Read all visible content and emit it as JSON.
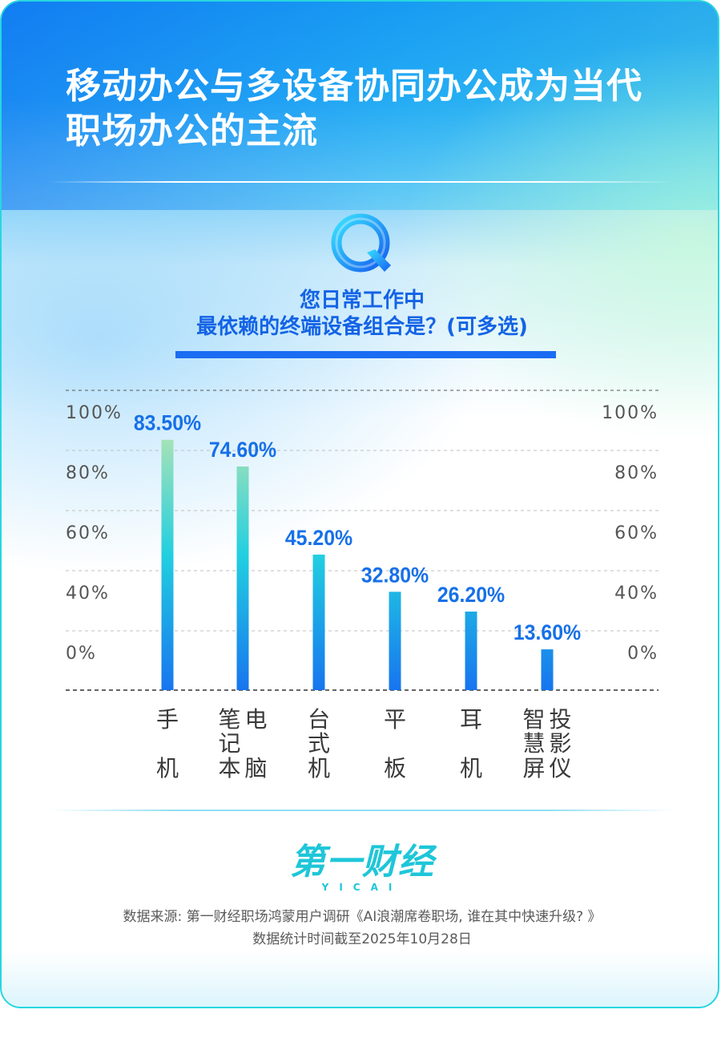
{
  "header": {
    "title_line1": "移动办公与多设备协同办公成为当代",
    "title_line2": "职场办公的主流"
  },
  "question": {
    "icon": "q-bubble-icon",
    "line1": "您日常工作中",
    "line2": "最依赖的终端设备组合是？(可多选)"
  },
  "chart_data": {
    "type": "bar",
    "categories": [
      "手机",
      "笔记本电脑",
      "台式机",
      "平板",
      "耳机",
      "智慧屏投影仪"
    ],
    "category_label_columns": [
      [
        [
          "手",
          "机"
        ]
      ],
      [
        [
          "笔",
          "记",
          "本"
        ],
        [
          "电",
          "脑"
        ]
      ],
      [
        [
          "台",
          "式",
          "机"
        ]
      ],
      [
        [
          "平",
          "板"
        ]
      ],
      [
        [
          "耳",
          "机"
        ]
      ],
      [
        [
          "智",
          "慧",
          "屏"
        ],
        [
          "投",
          "影",
          "仪"
        ]
      ]
    ],
    "values": [
      83.5,
      74.6,
      45.2,
      32.8,
      26.2,
      13.6
    ],
    "value_labels": [
      "83.50%",
      "74.60%",
      "45.20%",
      "32.80%",
      "26.20%",
      "13.60%"
    ],
    "tick_labels": [
      "100%",
      "80%",
      "60%",
      "40%",
      "0%"
    ],
    "ylim": [
      0,
      100
    ],
    "unit": "%",
    "colors": {
      "bar_bottom": "#1775ef",
      "bar_mid": "#22cfe0",
      "bar_top": "#ddeaa6",
      "value_label": "#1670e8",
      "tick_label": "#555555",
      "category_label": "#3a3a3a",
      "gridline": "#bfbfbf",
      "baseline": "#333333"
    }
  },
  "logo": {
    "main": "第一财经",
    "sub": "YICAI"
  },
  "source": {
    "line1": "数据来源: 第一财经职场鸿蒙用户调研《AI浪潮席卷职场, 谁在其中快速升级? 》",
    "line2": "数据统计时间截至2025年10月28日"
  }
}
